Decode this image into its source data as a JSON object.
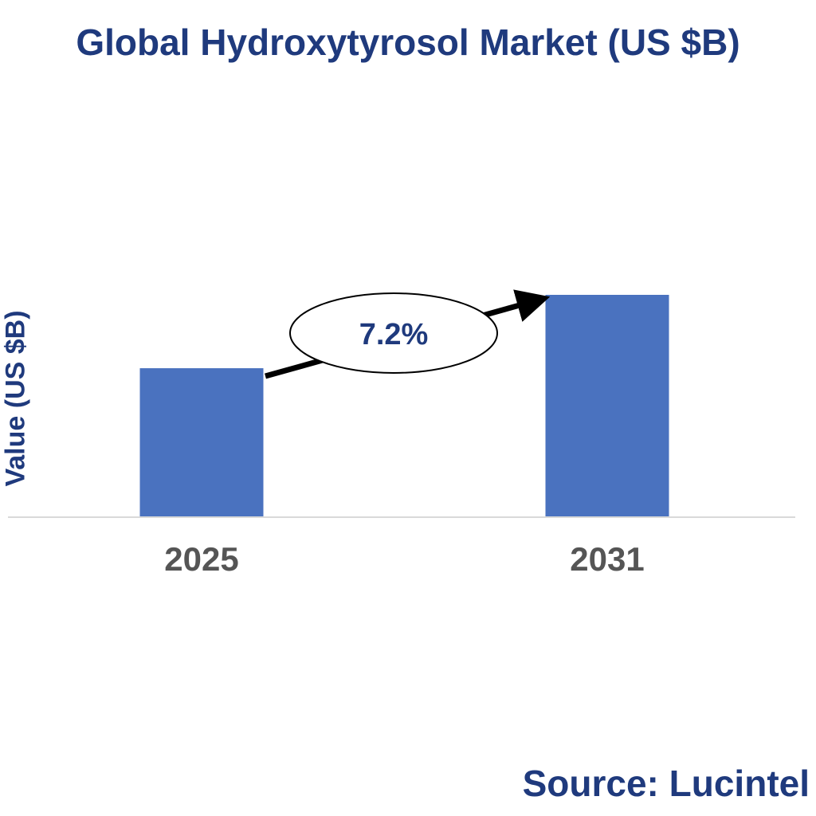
{
  "title": "Global Hydroxytyrosol Market (US $B)",
  "ylabel": "Value (US $B)",
  "source": "Source: Lucintel",
  "cagr": "7.2%",
  "colors": {
    "title": "#1f3a7d",
    "bar": "#4a72bf",
    "tick": "#555555",
    "axis": "#d9d9d9"
  },
  "chart_data": {
    "type": "bar",
    "title": "Global Hydroxytyrosol Market (US $B)",
    "xlabel": "",
    "ylabel": "Value (US $B)",
    "categories": [
      "2025",
      "2031"
    ],
    "values": [
      0.67,
      1.0
    ],
    "annotation": "7.2%",
    "grid": false,
    "legend": "none"
  }
}
